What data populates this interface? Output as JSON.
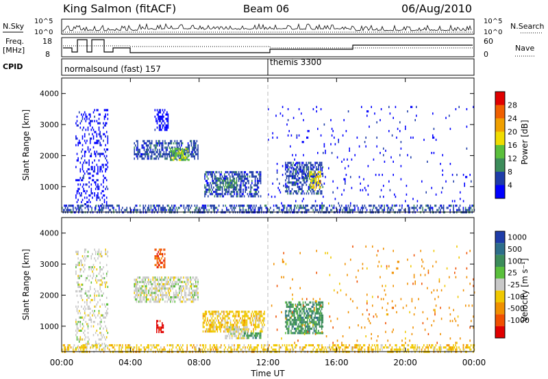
{
  "header": {
    "station": "King Salmon (fitACF)",
    "beam": "Beam 06",
    "date": "06/Aug/2010"
  },
  "top_panels": {
    "nsky_label": "N.Sky",
    "nsearch_label": "N.Search",
    "freq_label": "Freq.",
    "freq_unit": "[MHz]",
    "nave_label": "Nave",
    "cpid_label": "CPID",
    "nsky_ticks": [
      "10^5",
      "10^0"
    ],
    "nsearch_ticks": [
      "10^5",
      "10^0"
    ],
    "freq_ticks": [
      "18",
      "8"
    ],
    "nave_ticks": [
      "60",
      "0"
    ],
    "cpid_segments": [
      {
        "label": "normalsound (fast) 157",
        "start_hour": 0
      },
      {
        "label": "themis 3300",
        "start_hour": 12
      }
    ]
  },
  "colors": {
    "power_scale": [
      "#0000ff",
      "#1e3ca8",
      "#3c8c5a",
      "#5abf3c",
      "#f0dc00",
      "#f0a000",
      "#f06000",
      "#e00000"
    ],
    "velocity_scale": [
      "#1e3ca8",
      "#2d6e8a",
      "#3c8c5a",
      "#5abf3c",
      "#c8c8c8",
      "#f0c800",
      "#f09000",
      "#f05000",
      "#e00000"
    ]
  },
  "chart_data": [
    {
      "type": "heatmap",
      "name": "power",
      "ylabel": "Slant Range [km]",
      "xlabel": "Time UT",
      "x_ticks": [
        "00:00",
        "04:00",
        "08:00",
        "12:00",
        "16:00",
        "20:00",
        "00:00"
      ],
      "y_ticks": [
        "1000",
        "2000",
        "3000",
        "4000"
      ],
      "ylim": [
        180,
        4500
      ],
      "xlim_hours": [
        0,
        24
      ],
      "colorbar_label": "Power [dB]",
      "colorbar_ticks": [
        "4",
        "8",
        "12",
        "16",
        "20",
        "24",
        "28"
      ],
      "features": [
        {
          "t0": 0.8,
          "t1": 2.7,
          "r0": 300,
          "r1": 3500,
          "level": 0,
          "density": 0.25
        },
        {
          "t0": 5.4,
          "t1": 6.2,
          "r0": 2800,
          "r1": 3500,
          "level": 0,
          "density": 0.5
        },
        {
          "t0": 4.2,
          "t1": 7.9,
          "r0": 1900,
          "r1": 2500,
          "level": 1,
          "density": 0.55
        },
        {
          "t0": 6.3,
          "t1": 7.4,
          "r0": 1850,
          "r1": 2250,
          "level": 3,
          "density": 0.6
        },
        {
          "t0": 8.3,
          "t1": 11.6,
          "r0": 700,
          "r1": 1500,
          "level": 1,
          "density": 0.55
        },
        {
          "t0": 9.0,
          "t1": 10.2,
          "r0": 900,
          "r1": 1300,
          "level": 2,
          "density": 0.5
        },
        {
          "t0": 13.0,
          "t1": 15.2,
          "r0": 800,
          "r1": 1800,
          "level": 1,
          "density": 0.55
        },
        {
          "t0": 14.4,
          "t1": 15.1,
          "r0": 900,
          "r1": 1500,
          "level": 4,
          "density": 0.5
        },
        {
          "t0": 0.0,
          "t1": 24.0,
          "r0": 180,
          "r1": 420,
          "level": 1,
          "density": 0.45
        },
        {
          "t0": 12.0,
          "t1": 24.0,
          "r0": 400,
          "r1": 3600,
          "level": 0,
          "density": 0.025
        }
      ]
    },
    {
      "type": "heatmap",
      "name": "velocity",
      "ylabel": "Slant Range [km]",
      "xlabel": "Time UT",
      "x_ticks": [
        "00:00",
        "04:00",
        "08:00",
        "12:00",
        "16:00",
        "20:00",
        "00:00"
      ],
      "y_ticks": [
        "1000",
        "2000",
        "3000",
        "4000"
      ],
      "ylim": [
        180,
        4500
      ],
      "xlim_hours": [
        0,
        24
      ],
      "colorbar_label": "Velocity  [m s⁻¹]",
      "colorbar_ticks": [
        "1000",
        "500",
        "100",
        "25",
        "-25",
        "-100",
        "-500",
        "-1000"
      ],
      "features": [
        {
          "t0": 0.8,
          "t1": 2.7,
          "r0": 300,
          "r1": 3500,
          "level": 4,
          "density": 0.25
        },
        {
          "t0": 4.2,
          "t1": 7.9,
          "r0": 1800,
          "r1": 2600,
          "level": 4,
          "density": 0.6
        },
        {
          "t0": 5.4,
          "t1": 6.0,
          "r0": 2900,
          "r1": 3500,
          "level": 7,
          "density": 0.5
        },
        {
          "t0": 5.5,
          "t1": 5.9,
          "r0": 800,
          "r1": 1200,
          "level": 8,
          "density": 0.6
        },
        {
          "t0": 8.2,
          "t1": 11.8,
          "r0": 800,
          "r1": 1500,
          "level": 5,
          "density": 0.55
        },
        {
          "t0": 9.5,
          "t1": 10.8,
          "r0": 600,
          "r1": 1000,
          "level": 4,
          "density": 0.6
        },
        {
          "t0": 10.6,
          "t1": 11.6,
          "r0": 600,
          "r1": 800,
          "level": 2,
          "density": 0.6
        },
        {
          "t0": 13.0,
          "t1": 15.2,
          "r0": 800,
          "r1": 1800,
          "level": 2,
          "density": 0.65
        },
        {
          "t0": 0.0,
          "t1": 24.0,
          "r0": 180,
          "r1": 420,
          "level": 5,
          "density": 0.45
        },
        {
          "t0": 12.0,
          "t1": 24.0,
          "r0": 400,
          "r1": 3600,
          "level": 6,
          "density": 0.025
        }
      ]
    }
  ]
}
